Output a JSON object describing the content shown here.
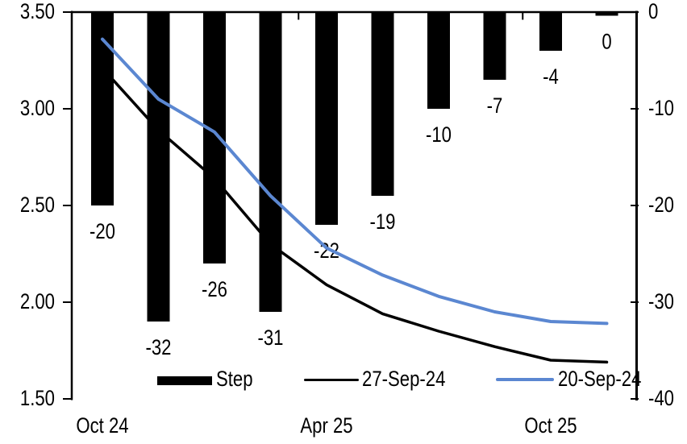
{
  "chart_data": {
    "type": "bar",
    "subtype": "combo-bar-line-dual-axis",
    "title": "",
    "num_slots": 10,
    "x_axis": {
      "labels": [
        "Oct 24",
        "Apr 25",
        "Oct 25"
      ],
      "label_slots": [
        0,
        4,
        8
      ],
      "group_tick_slots": [
        4,
        8
      ]
    },
    "left_axis": {
      "min": 1.5,
      "max": 3.5,
      "tick_labels": [
        "3.50",
        "3.00",
        "2.50",
        "2.00",
        "1.50"
      ]
    },
    "right_axis": {
      "min": -40,
      "max": 0,
      "tick_labels": [
        "0",
        "-10",
        "-20",
        "-30",
        "-40"
      ]
    },
    "bar_series": {
      "name": "Step",
      "axis": "right",
      "color": "#000000",
      "values": [
        -20,
        -32,
        -26,
        -31,
        -22,
        -19,
        -10,
        -7,
        -4,
        0
      ],
      "data_labels": [
        "-20",
        "-32",
        "-26",
        "-31",
        "-22",
        "-19",
        "-10",
        "-7",
        "-4",
        "0"
      ]
    },
    "line_series": [
      {
        "name": "27-Sep-24",
        "axis": "left",
        "color": "#000000",
        "values": [
          3.21,
          2.89,
          2.64,
          2.3,
          2.09,
          1.94,
          1.85,
          1.77,
          1.7,
          1.69
        ]
      },
      {
        "name": "20-Sep-24",
        "axis": "left",
        "color": "#5b87d1",
        "values": [
          3.36,
          3.05,
          2.88,
          2.55,
          2.28,
          2.14,
          2.03,
          1.95,
          1.9,
          1.89
        ]
      }
    ],
    "legend": {
      "position": "bottom",
      "entries": [
        "Step",
        "27-Sep-24",
        "20-Sep-24"
      ]
    },
    "colors": {
      "accent_blue": "#5b87d1",
      "bar_black": "#000000"
    }
  }
}
